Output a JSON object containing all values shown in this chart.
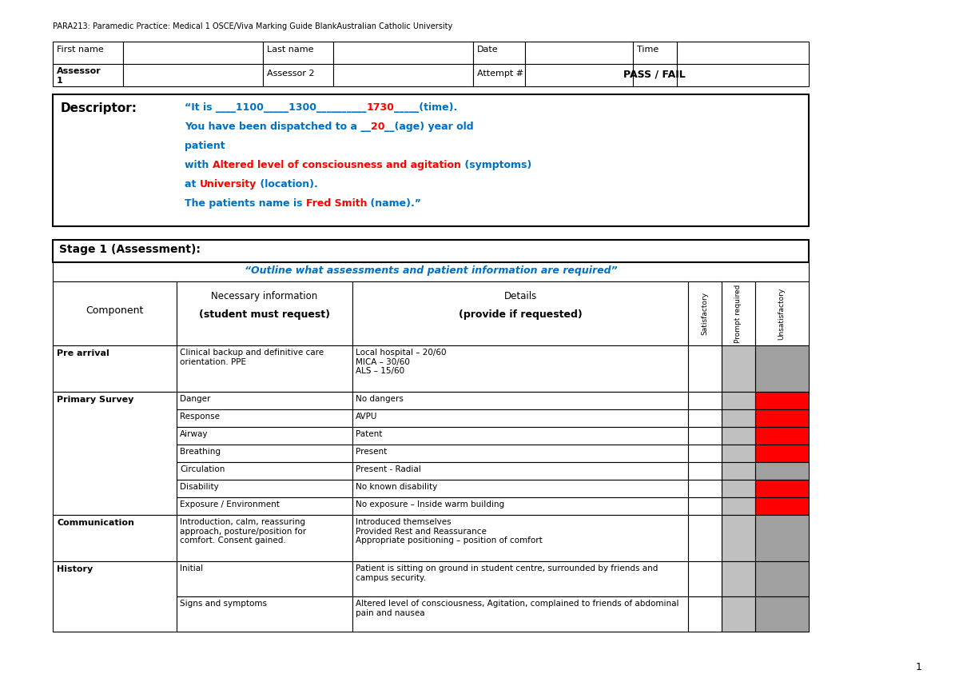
{
  "header_text": "PARA213: Paramedic Practice: Medical 1 OSCE/Viva Marking Guide BlankAustralian Catholic University",
  "bg_color": "#ffffff",
  "page_number": "1",
  "stage1_title": "Stage 1 (Assessment):",
  "stage1_subtitle": "“Outline what assessments and patient information are required”",
  "col_headers_rot": [
    "Satisfactory",
    "Prompt required",
    "Unsatisfactory"
  ],
  "descriptor_lines": [
    [
      [
        "“It is ____1100_____1300__________",
        "#0070C0",
        true
      ],
      [
        "1730",
        "#FF0000",
        true
      ],
      [
        "_____(time).",
        "#0070C0",
        true
      ]
    ],
    [
      [
        "You have been dispatched to a __",
        "#0070C0",
        true
      ],
      [
        "20",
        "#FF0000",
        true
      ],
      [
        "__(age) year old",
        "#0070C0",
        true
      ]
    ],
    [
      [
        "patient",
        "#0070C0",
        true
      ]
    ],
    [
      [
        "with ",
        "#0070C0",
        true
      ],
      [
        "Altered level of consciousness and agitation",
        "#FF0000",
        true
      ],
      [
        " (symptoms)",
        "#0070C0",
        true
      ]
    ],
    [
      [
        "at ",
        "#0070C0",
        true
      ],
      [
        "University",
        "#FF0000",
        true
      ],
      [
        " (location).",
        "#0070C0",
        true
      ]
    ],
    [
      [
        "The patients name is ",
        "#0070C0",
        true
      ],
      [
        "Fred Smith",
        "#FF0000",
        true
      ],
      [
        " (name).”",
        "#0070C0",
        true
      ]
    ]
  ],
  "ps_rows": [
    [
      "Danger",
      "No dangers",
      true
    ],
    [
      "Response",
      "AVPU",
      true
    ],
    [
      "Airway",
      "Patent",
      true
    ],
    [
      "Breathing",
      "Present",
      true
    ],
    [
      "Circulation",
      "Present - Radial",
      false
    ],
    [
      "Disability",
      "No known disability",
      true
    ],
    [
      "Exposure / Environment",
      "No exposure – Inside warm building",
      true
    ]
  ],
  "hist_rows": [
    [
      "Initial",
      "Patient is sitting on ground in student centre, surrounded by friends and\ncampus security.",
      false
    ],
    [
      "Signs and symptoms",
      "Altered level of consciousness, Agitation, complained to friends of abdominal\npain and nausea",
      false
    ]
  ]
}
